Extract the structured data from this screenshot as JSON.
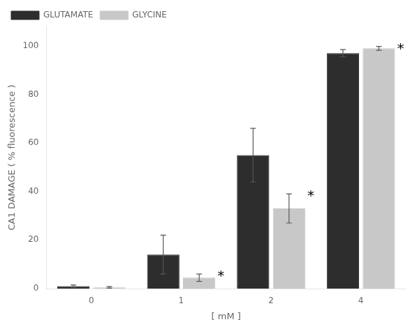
{
  "chart_data": {
    "type": "bar",
    "categories": [
      "0",
      "1",
      "2",
      "4"
    ],
    "series": [
      {
        "name": "GLUTAMATE",
        "color": "#2d2d2d",
        "values": [
          1.0,
          14.0,
          55.0,
          97.0
        ],
        "errors": [
          0.5,
          8.0,
          11.0,
          1.5
        ]
      },
      {
        "name": "GLYCINE",
        "color": "#c8c8c8",
        "values": [
          0.5,
          4.5,
          33.0,
          99.0
        ],
        "errors": [
          0.3,
          1.5,
          6.0,
          0.8
        ]
      }
    ],
    "x_label": "[ mM ]",
    "y_label": "CA1 DAMAGE ( % fluorescence )",
    "ylim": [
      0,
      108
    ],
    "yticks": [
      0,
      20,
      40,
      60,
      80,
      100
    ],
    "grid": false,
    "legend": "upper left",
    "annotations": [
      {
        "text": "*",
        "category": "1",
        "series": "GLYCINE"
      },
      {
        "text": "*",
        "category": "2",
        "series": "GLYCINE"
      },
      {
        "text": "*",
        "category": "4",
        "series": "GLYCINE"
      }
    ]
  }
}
